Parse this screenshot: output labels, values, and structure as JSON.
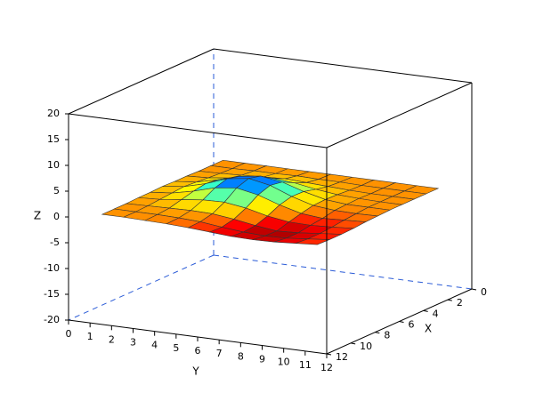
{
  "chart_data": {
    "type": "surface",
    "x_label": "X",
    "y_label": "Y",
    "z_label": "Z",
    "xlim": [
      0,
      12
    ],
    "ylim": [
      0,
      12
    ],
    "zlim": [
      -20,
      20
    ],
    "xticks": [
      0,
      2,
      4,
      6,
      8,
      10,
      12
    ],
    "yticks": [
      0,
      1,
      2,
      3,
      4,
      5,
      6,
      7,
      8,
      9,
      10,
      11,
      12
    ],
    "zticks": [
      -20,
      -15,
      -10,
      -5,
      0,
      5,
      10,
      15,
      20
    ],
    "x": [
      1,
      2,
      3,
      4,
      5,
      6,
      7,
      8,
      9,
      10,
      11
    ],
    "y": [
      1,
      2,
      3,
      4,
      5,
      6,
      7,
      8,
      9,
      10,
      11
    ],
    "z": [
      [
        0,
        0,
        0,
        0,
        0,
        0,
        0,
        0,
        0,
        0,
        0
      ],
      [
        0,
        0,
        0.1,
        0.1,
        0.2,
        0.1,
        0.1,
        0,
        0,
        0,
        0
      ],
      [
        0,
        0.1,
        0.3,
        0.5,
        0.7,
        0.5,
        0.3,
        0.1,
        0,
        0,
        0
      ],
      [
        0.1,
        0.3,
        0.8,
        1.5,
        1.8,
        1.5,
        0.8,
        0.3,
        0.1,
        0,
        0
      ],
      [
        0.1,
        0.5,
        1.5,
        2.7,
        3.3,
        2.7,
        1.4,
        0.4,
        0,
        0,
        0
      ],
      [
        0.2,
        0.7,
        1.8,
        3.3,
        3.9,
        3.1,
        1.5,
        0.3,
        -0.1,
        -0.2,
        -0.1
      ],
      [
        0.1,
        0.5,
        1.4,
        2.6,
        3.1,
        2.3,
        0.9,
        -0.2,
        -0.6,
        -0.4,
        -0.2
      ],
      [
        0.1,
        0.3,
        0.8,
        1.3,
        1.4,
        0.8,
        -0.2,
        -0.8,
        -0.9,
        -0.7,
        -0.4
      ],
      [
        0,
        0.1,
        0.2,
        0.3,
        0.2,
        -0.3,
        -1.0,
        -1.5,
        -1.3,
        -0.9,
        -0.5
      ],
      [
        0,
        0,
        0,
        -0.1,
        -0.3,
        -0.8,
        -1.2,
        -1.4,
        -1.3,
        -0.9,
        -0.5
      ],
      [
        0,
        0,
        -0.1,
        -0.2,
        -0.4,
        -0.7,
        -1.0,
        -1.1,
        -1.0,
        -0.7,
        -0.4
      ]
    ],
    "colormap": [
      "#a00000",
      "#ff0000",
      "#ff8000",
      "#ffd000",
      "#ffff00",
      "#80ff80",
      "#00ffff",
      "#0080ff",
      "#0000ff"
    ],
    "grid": true
  }
}
